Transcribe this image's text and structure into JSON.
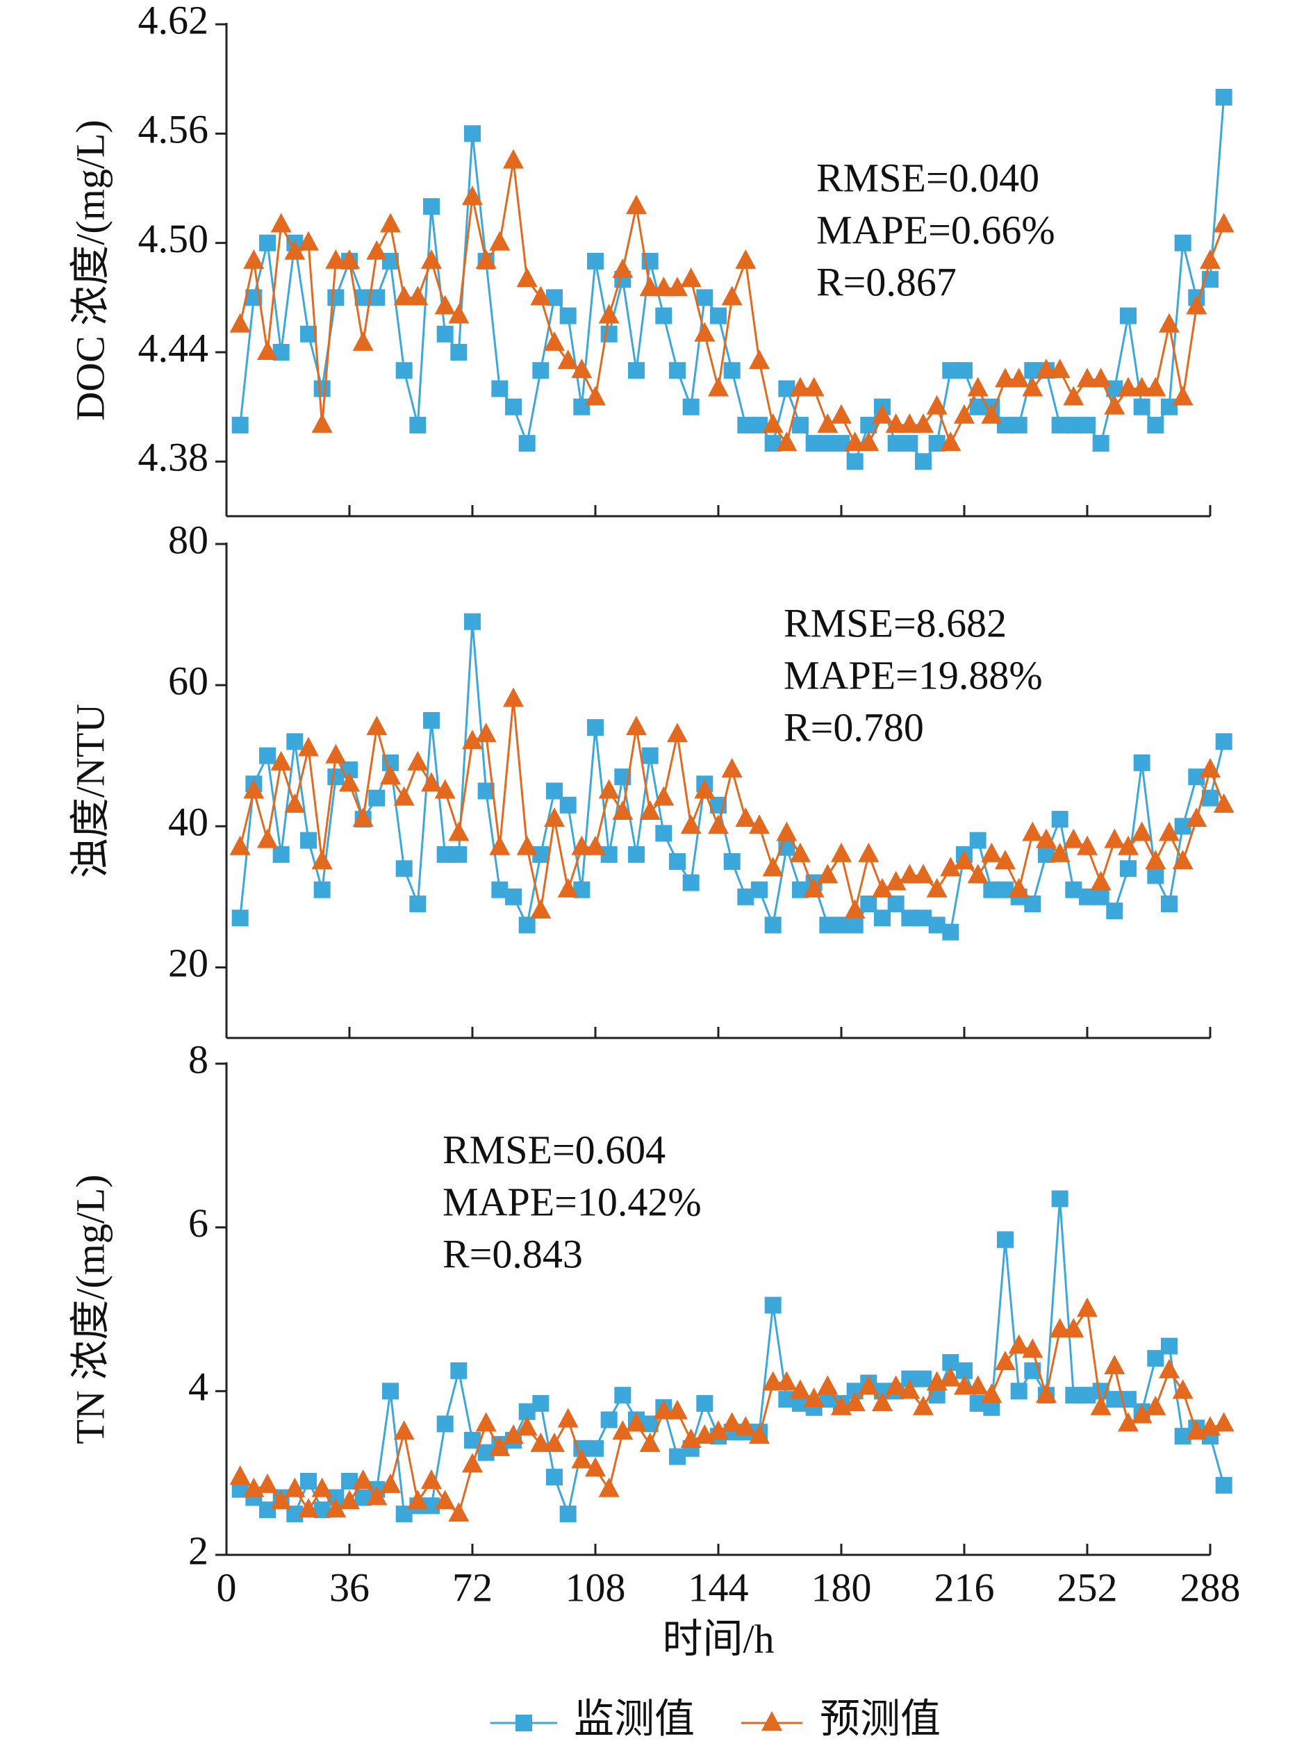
{
  "chart_data": [
    {
      "type": "line",
      "ylabel": "DOC 浓度/(mg/L)",
      "annotations": [
        "RMSE=0.040",
        "MAPE=0.66%",
        "R=0.867"
      ],
      "legend": "bottom",
      "xlim": [
        0,
        288
      ],
      "xticks": [
        0,
        36,
        72,
        108,
        144,
        180,
        216,
        252,
        288
      ],
      "ylim": [
        4.35,
        4.62
      ],
      "yticks": [
        4.38,
        4.44,
        {
          "value": 4.5,
          "label": "4.50"
        },
        4.56,
        4.62
      ],
      "x": [
        4,
        8,
        12,
        16,
        20,
        24,
        28,
        32,
        36,
        40,
        44,
        48,
        52,
        56,
        60,
        64,
        68,
        72,
        76,
        80,
        84,
        88,
        92,
        96,
        100,
        104,
        108,
        112,
        116,
        120,
        124,
        128,
        132,
        136,
        140,
        144,
        148,
        152,
        156,
        160,
        164,
        168,
        172,
        176,
        180,
        184,
        188,
        192,
        196,
        200,
        204,
        208,
        212,
        216,
        220,
        224,
        228,
        232,
        236,
        240,
        244,
        248,
        252,
        256,
        260,
        264,
        268,
        272,
        276,
        280,
        284,
        288,
        292
      ],
      "series": [
        {
          "name": "监测值",
          "color": "#3ba7db",
          "marker": "square",
          "values": [
            4.4,
            4.47,
            4.5,
            4.44,
            4.5,
            4.45,
            4.42,
            4.47,
            4.49,
            4.47,
            4.47,
            4.49,
            4.43,
            4.4,
            4.52,
            4.45,
            4.44,
            4.56,
            4.49,
            4.42,
            4.41,
            4.39,
            4.43,
            4.47,
            4.46,
            4.41,
            4.49,
            4.45,
            4.48,
            4.43,
            4.49,
            4.46,
            4.43,
            4.41,
            4.47,
            4.46,
            4.43,
            4.4,
            4.4,
            4.39,
            4.42,
            4.4,
            4.39,
            4.39,
            4.39,
            4.38,
            4.4,
            4.41,
            4.39,
            4.39,
            4.38,
            4.39,
            4.43,
            4.43,
            4.41,
            4.41,
            4.4,
            4.4,
            4.43,
            4.43,
            4.4,
            4.4,
            4.4,
            4.39,
            4.42,
            4.46,
            4.41,
            4.4,
            4.41,
            4.5,
            4.47,
            4.48,
            4.58
          ]
        },
        {
          "name": "预测值",
          "color": "#e2691e",
          "marker": "triangle",
          "values": [
            4.455,
            4.49,
            4.44,
            4.51,
            4.495,
            4.5,
            4.4,
            4.49,
            4.49,
            4.445,
            4.495,
            4.51,
            4.47,
            4.47,
            4.49,
            4.465,
            4.46,
            4.525,
            4.49,
            4.5,
            4.545,
            4.48,
            4.47,
            4.445,
            4.435,
            4.43,
            4.415,
            4.46,
            4.485,
            4.52,
            4.475,
            4.475,
            4.475,
            4.48,
            4.45,
            4.42,
            4.47,
            4.49,
            4.435,
            4.4,
            4.39,
            4.42,
            4.42,
            4.4,
            4.405,
            4.39,
            4.39,
            4.405,
            4.4,
            4.4,
            4.4,
            4.41,
            4.39,
            4.405,
            4.42,
            4.405,
            4.425,
            4.425,
            4.42,
            4.43,
            4.43,
            4.415,
            4.425,
            4.425,
            4.41,
            4.42,
            4.42,
            4.42,
            4.455,
            4.415,
            4.465,
            4.49,
            4.51
          ]
        }
      ]
    },
    {
      "type": "line",
      "ylabel": "浊度/NTU",
      "annotations": [
        "RMSE=8.682",
        "MAPE=19.88%",
        "R=0.780"
      ],
      "xlim": [
        0,
        288
      ],
      "xticks": [
        0,
        36,
        72,
        108,
        144,
        180,
        216,
        252,
        288
      ],
      "ylim": [
        10,
        80
      ],
      "yticks": [
        20,
        40,
        60,
        80
      ],
      "x": [
        4,
        8,
        12,
        16,
        20,
        24,
        28,
        32,
        36,
        40,
        44,
        48,
        52,
        56,
        60,
        64,
        68,
        72,
        76,
        80,
        84,
        88,
        92,
        96,
        100,
        104,
        108,
        112,
        116,
        120,
        124,
        128,
        132,
        136,
        140,
        144,
        148,
        152,
        156,
        160,
        164,
        168,
        172,
        176,
        180,
        184,
        188,
        192,
        196,
        200,
        204,
        208,
        212,
        216,
        220,
        224,
        228,
        232,
        236,
        240,
        244,
        248,
        252,
        256,
        260,
        264,
        268,
        272,
        276,
        280,
        284,
        288,
        292
      ],
      "series": [
        {
          "name": "监测值",
          "color": "#3ba7db",
          "marker": "square",
          "values": [
            27,
            46,
            50,
            36,
            52,
            38,
            31,
            47,
            48,
            41,
            44,
            49,
            34,
            29,
            55,
            36,
            36,
            69,
            45,
            31,
            30,
            26,
            36,
            45,
            43,
            31,
            54,
            36,
            47,
            36,
            50,
            39,
            35,
            32,
            46,
            43,
            35,
            30,
            31,
            26,
            37,
            31,
            32,
            26,
            26,
            26,
            29,
            27,
            29,
            27,
            27,
            26,
            25,
            36,
            38,
            31,
            31,
            30,
            29,
            36,
            41,
            31,
            30,
            30,
            28,
            34,
            49,
            33,
            29,
            40,
            47,
            44,
            52
          ]
        },
        {
          "name": "预测值",
          "color": "#e2691e",
          "marker": "triangle",
          "values": [
            37,
            45,
            38,
            49,
            43,
            51,
            35,
            50,
            46,
            41,
            54,
            47,
            44,
            49,
            46,
            45,
            39,
            52,
            53,
            37,
            58,
            37,
            28,
            41,
            31,
            37,
            37,
            45,
            42,
            54,
            42,
            44,
            53,
            40,
            45,
            40,
            48,
            41,
            40,
            34,
            39,
            36,
            31,
            33,
            36,
            28,
            36,
            31,
            32,
            33,
            33,
            31,
            34,
            35,
            33,
            36,
            35,
            31,
            39,
            38,
            36,
            38,
            37,
            32,
            38,
            37,
            39,
            35,
            39,
            35,
            41,
            48,
            43
          ]
        }
      ]
    },
    {
      "type": "line",
      "ylabel": "TN 浓度/(mg/L)",
      "xlabel": "时间/h",
      "annotations": [
        "RMSE=0.604",
        "MAPE=10.42%",
        "R=0.843"
      ],
      "xlim": [
        0,
        288
      ],
      "xticks": [
        0,
        36,
        72,
        108,
        144,
        180,
        216,
        252,
        288
      ],
      "ylim": [
        2,
        8
      ],
      "yticks": [
        2,
        4,
        6,
        8
      ],
      "x": [
        4,
        8,
        12,
        16,
        20,
        24,
        28,
        32,
        36,
        40,
        44,
        48,
        52,
        56,
        60,
        64,
        68,
        72,
        76,
        80,
        84,
        88,
        92,
        96,
        100,
        104,
        108,
        112,
        116,
        120,
        124,
        128,
        132,
        136,
        140,
        144,
        148,
        152,
        156,
        160,
        164,
        168,
        172,
        176,
        180,
        184,
        188,
        192,
        196,
        200,
        204,
        208,
        212,
        216,
        220,
        224,
        228,
        232,
        236,
        240,
        244,
        248,
        252,
        256,
        260,
        264,
        268,
        272,
        276,
        280,
        284,
        288,
        292
      ],
      "series": [
        {
          "name": "监测值",
          "color": "#3ba7db",
          "marker": "square",
          "values": [
            2.8,
            2.7,
            2.55,
            2.7,
            2.5,
            2.9,
            2.55,
            2.7,
            2.9,
            2.7,
            2.8,
            4.0,
            2.5,
            2.6,
            2.6,
            3.6,
            4.25,
            3.4,
            3.25,
            3.35,
            3.4,
            3.75,
            3.85,
            2.95,
            2.5,
            3.3,
            3.3,
            3.65,
            3.95,
            3.65,
            3.6,
            3.8,
            3.2,
            3.3,
            3.85,
            3.45,
            3.5,
            3.5,
            3.5,
            5.05,
            3.9,
            3.85,
            3.8,
            3.9,
            3.85,
            4.0,
            4.1,
            4.0,
            4.0,
            4.15,
            4.15,
            3.95,
            4.35,
            4.25,
            3.85,
            3.8,
            5.85,
            4.0,
            4.25,
            3.95,
            6.35,
            3.95,
            3.95,
            4.0,
            3.9,
            3.9,
            3.75,
            4.4,
            4.55,
            3.45,
            3.55,
            3.45,
            2.85
          ]
        },
        {
          "name": "预测值",
          "color": "#e2691e",
          "marker": "triangle",
          "values": [
            2.95,
            2.8,
            2.85,
            2.65,
            2.8,
            2.55,
            2.8,
            2.55,
            2.65,
            2.9,
            2.7,
            2.85,
            3.5,
            2.65,
            2.9,
            2.65,
            2.5,
            3.1,
            3.6,
            3.3,
            3.45,
            3.55,
            3.35,
            3.35,
            3.65,
            3.15,
            3.05,
            2.8,
            3.5,
            3.6,
            3.35,
            3.75,
            3.75,
            3.4,
            3.45,
            3.5,
            3.6,
            3.55,
            3.45,
            4.1,
            4.1,
            4.0,
            3.9,
            4.05,
            3.8,
            3.85,
            4.05,
            3.85,
            4.05,
            4.0,
            3.8,
            4.1,
            4.15,
            4.05,
            4.05,
            3.95,
            4.35,
            4.55,
            4.5,
            3.95,
            4.75,
            4.75,
            5.0,
            3.8,
            4.3,
            3.6,
            3.7,
            3.8,
            4.25,
            4.0,
            3.5,
            3.55,
            3.6
          ]
        }
      ]
    }
  ]
}
